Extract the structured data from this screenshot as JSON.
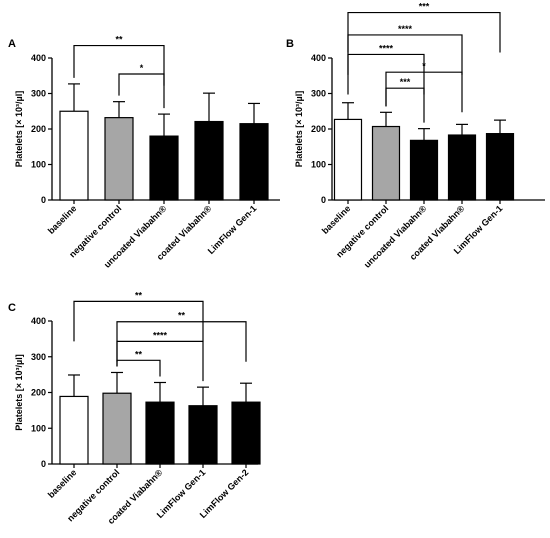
{
  "chart_data": [
    {
      "panel": "A",
      "type": "bar",
      "ylabel": "Platelets [× 10³/µl]",
      "ylim": [
        0,
        400
      ],
      "yticks": [
        0,
        100,
        200,
        300,
        400
      ],
      "categories": [
        "baseline",
        "negative control",
        "uncoated Viabahn®",
        "coated Viabahn®",
        "LimFlow Gen-1"
      ],
      "values": [
        250,
        232,
        180,
        221,
        215
      ],
      "errors": [
        77,
        45,
        62,
        80,
        57
      ],
      "bar_colors": [
        "#ffffff",
        "#a6a6a6",
        "#000000",
        "#000000",
        "#000000"
      ],
      "significance": [
        {
          "from": 0,
          "to": 2,
          "label": "**",
          "level": 435
        },
        {
          "from": 1,
          "to": 2,
          "label": "*",
          "level": 355
        }
      ]
    },
    {
      "panel": "B",
      "type": "bar",
      "ylabel": "Platelets [× 10³/µl]",
      "ylim": [
        0,
        400
      ],
      "yticks": [
        0,
        100,
        200,
        300,
        400
      ],
      "categories": [
        "baseline",
        "negative control",
        "uncoated Viabahn®",
        "coated Viabahn®",
        "LimFlow Gen-1"
      ],
      "values": [
        227,
        207,
        168,
        183,
        187
      ],
      "errors": [
        47,
        40,
        33,
        30,
        38
      ],
      "bar_colors": [
        "#ffffff",
        "#a6a6a6",
        "#000000",
        "#000000",
        "#000000"
      ],
      "significance": [
        {
          "from": 0,
          "to": 4,
          "label": "***",
          "level": 528
        },
        {
          "from": 0,
          "to": 3,
          "label": "****",
          "level": 465
        },
        {
          "from": 0,
          "to": 2,
          "label": "****",
          "level": 410
        },
        {
          "from": 1,
          "to": 3,
          "label": "*",
          "level": 360
        },
        {
          "from": 1,
          "to": 2,
          "label": "***",
          "level": 315
        }
      ]
    },
    {
      "panel": "C",
      "type": "bar",
      "ylabel": "Platelets [× 10³/µl]",
      "ylim": [
        0,
        400
      ],
      "yticks": [
        0,
        100,
        200,
        300,
        400
      ],
      "categories": [
        "baseline",
        "negative control",
        "coated Viabahn®",
        "LimFlow Gen-1",
        "LimFlow Gen-2"
      ],
      "values": [
        189,
        198,
        173,
        163,
        173
      ],
      "errors": [
        60,
        58,
        55,
        52,
        53
      ],
      "bar_colors": [
        "#ffffff",
        "#a6a6a6",
        "#000000",
        "#000000",
        "#000000"
      ],
      "significance": [
        {
          "from": 0,
          "to": 3,
          "label": "**",
          "level": 455
        },
        {
          "from": 1,
          "to": 4,
          "label": "**",
          "level": 398
        },
        {
          "from": 1,
          "to": 3,
          "label": "****",
          "level": 343
        },
        {
          "from": 1,
          "to": 2,
          "label": "**",
          "level": 290
        }
      ]
    }
  ]
}
